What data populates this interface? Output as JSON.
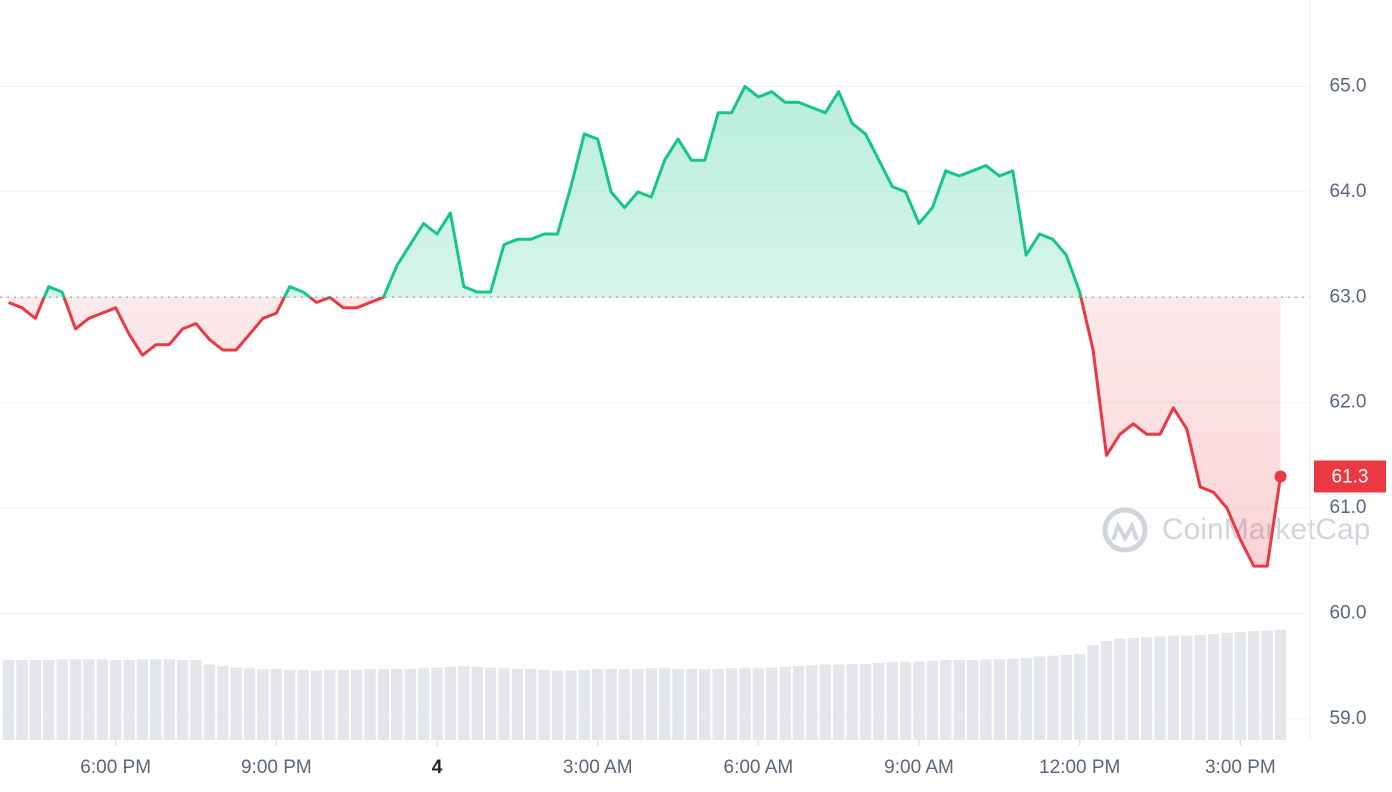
{
  "chart_data": {
    "type": "line",
    "x": [
      -8,
      -7.75,
      -7.5,
      -7.25,
      -7,
      -6.75,
      -6.5,
      -6.25,
      -6,
      -5.75,
      -5.5,
      -5.25,
      -5,
      -4.75,
      -4.5,
      -4.25,
      -4,
      -3.75,
      -3.5,
      -3.25,
      -3,
      -2.75,
      -2.5,
      -2.25,
      -2,
      -1.75,
      -1.5,
      -1.25,
      -1,
      -0.75,
      -0.5,
      -0.25,
      0,
      0.25,
      0.5,
      0.75,
      1,
      1.25,
      1.5,
      1.75,
      2,
      2.25,
      2.5,
      2.75,
      3,
      3.25,
      3.5,
      3.75,
      4,
      4.25,
      4.5,
      4.75,
      5,
      5.25,
      5.5,
      5.75,
      6,
      6.25,
      6.5,
      6.75,
      7,
      7.25,
      7.5,
      7.75,
      8,
      8.25,
      8.5,
      8.75,
      9,
      9.25,
      9.5,
      9.75,
      10,
      10.25,
      10.5,
      10.75,
      11,
      11.25,
      11.5,
      11.75,
      12,
      12.25,
      12.5,
      12.75,
      13,
      13.25,
      13.5,
      13.75,
      14,
      14.25,
      14.5,
      14.75,
      15,
      15.25,
      15.5,
      15.75
    ],
    "series": [
      {
        "values": [
          62.95,
          62.9,
          62.8,
          63.1,
          63.05,
          62.7,
          62.8,
          62.85,
          62.9,
          62.65,
          62.45,
          62.55,
          62.55,
          62.7,
          62.75,
          62.6,
          62.5,
          62.5,
          62.65,
          62.8,
          62.85,
          63.1,
          63.05,
          62.95,
          63.0,
          62.9,
          62.9,
          62.95,
          63.0,
          63.3,
          63.5,
          63.7,
          63.6,
          63.8,
          63.1,
          63.05,
          63.05,
          63.5,
          63.55,
          63.55,
          63.6,
          63.6,
          64.05,
          64.55,
          64.5,
          64.0,
          63.85,
          64.0,
          63.95,
          64.3,
          64.5,
          64.3,
          64.3,
          64.75,
          64.75,
          65.0,
          64.9,
          64.95,
          64.85,
          64.85,
          64.8,
          64.75,
          64.95,
          64.65,
          64.55,
          64.3,
          64.05,
          64.0,
          63.7,
          63.85,
          64.2,
          64.15,
          64.2,
          64.25,
          64.15,
          64.2,
          63.4,
          63.6,
          63.55,
          63.4,
          63.05,
          62.5,
          61.5,
          61.7,
          61.8,
          61.7,
          61.7,
          61.95,
          61.75,
          61.2,
          61.15,
          61.0,
          60.7,
          60.45,
          60.45,
          61.3
        ],
        "up_color": "#16c784",
        "down_color": "#ea3943"
      }
    ],
    "volume": [
      10.8,
      10.8,
      10.8,
      10.8,
      10.9,
      10.9,
      10.9,
      10.9,
      10.8,
      10.8,
      10.9,
      10.9,
      10.9,
      10.8,
      10.8,
      10.2,
      10.0,
      9.8,
      9.7,
      9.6,
      9.6,
      9.5,
      9.5,
      9.4,
      9.5,
      9.5,
      9.5,
      9.6,
      9.6,
      9.6,
      9.6,
      9.7,
      9.8,
      9.9,
      10.0,
      9.9,
      9.8,
      9.7,
      9.6,
      9.6,
      9.5,
      9.4,
      9.4,
      9.5,
      9.6,
      9.6,
      9.6,
      9.6,
      9.7,
      9.7,
      9.6,
      9.6,
      9.6,
      9.6,
      9.7,
      9.7,
      9.7,
      9.8,
      9.9,
      10.0,
      10.1,
      10.2,
      10.2,
      10.3,
      10.3,
      10.4,
      10.5,
      10.6,
      10.6,
      10.7,
      10.8,
      10.8,
      10.8,
      10.9,
      10.9,
      11.0,
      11.1,
      11.3,
      11.4,
      11.5,
      11.6,
      12.8,
      13.4,
      13.7,
      13.8,
      13.9,
      14.0,
      14.1,
      14.1,
      14.2,
      14.3,
      14.5,
      14.6,
      14.7,
      14.8,
      14.9
    ],
    "volume_ylim": [
      0,
      100
    ],
    "volume_color": "#e3e6eb",
    "baseline": 63.0,
    "current_price": 61.3,
    "watermark": "CoinMarketCap",
    "xlim": [
      -8.16,
      16.3
    ],
    "ylim": [
      58.8,
      65.82
    ],
    "yticks": [
      {
        "value": 59,
        "label": "59.0"
      },
      {
        "value": 60,
        "label": "60.0"
      },
      {
        "value": 61,
        "label": "61.0"
      },
      {
        "value": 62,
        "label": "62.0"
      },
      {
        "value": 63,
        "label": "63.0"
      },
      {
        "value": 64,
        "label": "64.0"
      },
      {
        "value": 65,
        "label": "65.0"
      }
    ],
    "xticks": [
      {
        "value": -6,
        "label": "6:00 PM"
      },
      {
        "value": -3,
        "label": "9:00 PM"
      },
      {
        "value": 0,
        "label": "4"
      },
      {
        "value": 3,
        "label": "3:00 AM"
      },
      {
        "value": 6,
        "label": "6:00 AM"
      },
      {
        "value": 9,
        "label": "9:00 AM"
      },
      {
        "value": 12,
        "label": "12:00 PM"
      },
      {
        "value": 15,
        "label": "3:00 PM"
      }
    ],
    "grid": true
  }
}
